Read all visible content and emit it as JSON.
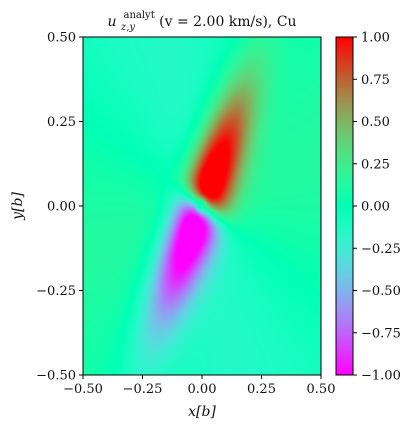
{
  "chart_data": {
    "type": "heatmap",
    "title": {
      "symbol": "u",
      "subscript": "z,y",
      "superscript": "analyt",
      "rest": "(v = 2.00 km/s), Cu"
    },
    "xlabel": "x[b]",
    "ylabel": "y[b]",
    "xlim": [
      -0.5,
      0.5
    ],
    "ylim": [
      -0.5,
      0.5
    ],
    "x_ticks": [
      -0.5,
      -0.25,
      0.0,
      0.25,
      0.5
    ],
    "x_tick_labels": [
      "−0.50",
      "−0.25",
      "0.00",
      "0.25",
      "0.50"
    ],
    "y_ticks": [
      -0.5,
      -0.25,
      0.0,
      0.25,
      0.5
    ],
    "y_tick_labels": [
      "−0.50",
      "−0.25",
      "0.00",
      "0.25",
      "0.50"
    ],
    "colorbar": {
      "colormap": "rainbow",
      "range": [
        -1.0,
        1.0
      ],
      "ticks": [
        1.0,
        0.75,
        0.5,
        0.25,
        0.0,
        -0.25,
        -0.5,
        -0.75,
        -1.0
      ],
      "tick_labels": [
        "1.00",
        "0.75",
        "0.50",
        "0.25",
        "0.00",
        "−0.25",
        "−0.50",
        "−0.75",
        "−1.00"
      ]
    },
    "field": {
      "description_values": {
        "center": [
          0.0,
          0.0
        ],
        "lobe_major_axis_angle_deg": 62,
        "max_value": 1.0,
        "min_value": -1.0,
        "positive_lobe_direction": "upper-right",
        "negative_lobe_direction": "lower-left",
        "far_field_value_upper_left": -0.15,
        "far_field_value_lower_right": 0.15
      }
    },
    "grid": false
  }
}
